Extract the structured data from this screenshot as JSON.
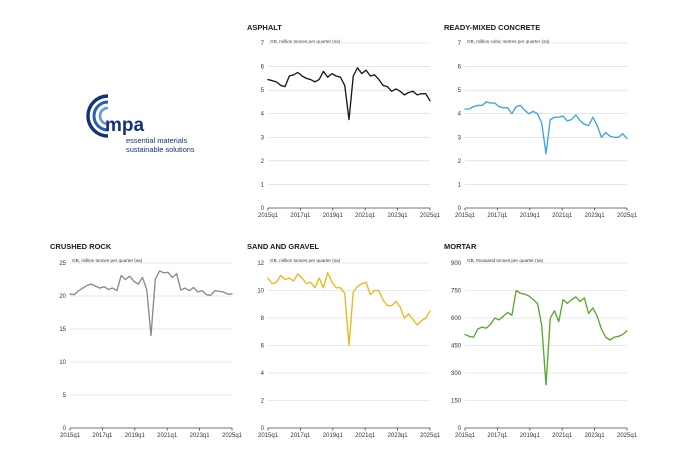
{
  "logo": {
    "name": "mpa",
    "tagline_1": "essential materials",
    "tagline_2": "sustainable solutions",
    "color": "#16307a"
  },
  "chart_data": [
    {
      "type": "line",
      "title": "ASPHALT",
      "ylabel": "GB, million tonnes per quarter (sa)",
      "ylim": [
        0,
        7
      ],
      "yticks": [
        0,
        1,
        2,
        3,
        4,
        5,
        6,
        7
      ],
      "color": "#1a1a1a",
      "x_start": "2015q1",
      "xtick_labels": [
        "2015q1",
        "2017q1",
        "2019q1",
        "2021q1",
        "2023q1",
        "2025q1"
      ],
      "values": [
        5.45,
        5.4,
        5.35,
        5.2,
        5.15,
        5.6,
        5.65,
        5.75,
        5.6,
        5.5,
        5.45,
        5.35,
        5.45,
        5.8,
        5.55,
        5.7,
        5.6,
        5.55,
        5.2,
        3.75,
        5.6,
        5.95,
        5.7,
        5.85,
        5.6,
        5.65,
        5.45,
        5.2,
        5.15,
        4.95,
        5.05,
        4.95,
        4.8,
        4.9,
        4.95,
        4.8,
        4.85,
        4.85,
        4.55
      ]
    },
    {
      "type": "line",
      "title": "READY-MIXED CONCRETE",
      "ylabel": "GB, million cubic metres per quarter (sa)",
      "ylim": [
        0,
        7
      ],
      "yticks": [
        0,
        1,
        2,
        3,
        4,
        5,
        6,
        7
      ],
      "color": "#3aa8dd",
      "x_start": "2015q1",
      "xtick_labels": [
        "2015q1",
        "2017q1",
        "2019q1",
        "2021q1",
        "2023q1",
        "2025q1"
      ],
      "values": [
        4.2,
        4.2,
        4.3,
        4.35,
        4.35,
        4.5,
        4.45,
        4.45,
        4.3,
        4.25,
        4.25,
        4.0,
        4.3,
        4.35,
        4.15,
        4.0,
        4.1,
        4.0,
        3.6,
        2.3,
        3.75,
        3.85,
        3.85,
        3.9,
        3.7,
        3.75,
        3.95,
        3.7,
        3.55,
        3.5,
        3.85,
        3.5,
        3.0,
        3.2,
        3.05,
        3.0,
        3.0,
        3.15,
        2.95
      ]
    },
    {
      "type": "line",
      "title": "CRUSHED ROCK",
      "ylabel": "GB, million tonnes per quarter (sa)",
      "ylim": [
        0,
        25
      ],
      "yticks": [
        0,
        5,
        10,
        15,
        20,
        25
      ],
      "color": "#8a8a8a",
      "x_start": "2015q1",
      "xtick_labels": [
        "2015q1",
        "2017q1",
        "2019q1",
        "2021q1",
        "2023q1",
        "2025q1"
      ],
      "values": [
        20.3,
        20.2,
        20.8,
        21.2,
        21.6,
        21.8,
        21.5,
        21.2,
        21.4,
        21.0,
        21.2,
        20.8,
        23.1,
        22.5,
        23.0,
        22.2,
        21.8,
        22.8,
        21.0,
        14.0,
        22.5,
        23.8,
        23.5,
        23.6,
        22.8,
        23.4,
        20.9,
        21.2,
        20.8,
        21.3,
        20.6,
        20.8,
        20.2,
        20.1,
        20.8,
        20.7,
        20.6,
        20.3,
        20.3
      ]
    },
    {
      "type": "line",
      "title": "SAND AND GRAVEL",
      "ylabel": "GB, million tonnes per quarter (sa)",
      "ylim": [
        0,
        12
      ],
      "yticks": [
        0,
        2,
        4,
        6,
        8,
        10,
        12
      ],
      "color": "#e8b81c",
      "x_start": "2015q1",
      "xtick_labels": [
        "2015q1",
        "2017q1",
        "2019q1",
        "2021q1",
        "2023q1",
        "2025q1"
      ],
      "values": [
        10.9,
        10.5,
        10.6,
        11.1,
        10.8,
        10.9,
        10.7,
        11.2,
        10.9,
        10.5,
        10.6,
        10.2,
        10.9,
        10.2,
        11.3,
        10.6,
        10.2,
        10.2,
        9.8,
        6.0,
        9.9,
        10.3,
        10.5,
        10.6,
        9.7,
        10.0,
        10.0,
        9.3,
        8.9,
        8.9,
        9.2,
        8.8,
        8.0,
        8.3,
        7.9,
        7.5,
        7.8,
        8.0,
        8.5
      ]
    },
    {
      "type": "line",
      "title": "MORTAR",
      "ylabel": "GB, thousand tonnes per quarter (sa)",
      "ylim": [
        0,
        900
      ],
      "yticks": [
        0,
        150,
        300,
        450,
        600,
        750,
        900
      ],
      "color": "#5aa832",
      "x_start": "2015q1",
      "xtick_labels": [
        "2015q1",
        "2017q1",
        "2019q1",
        "2021q1",
        "2023q1",
        "2025q1"
      ],
      "values": [
        510,
        500,
        495,
        540,
        550,
        545,
        565,
        600,
        590,
        610,
        630,
        615,
        750,
        735,
        730,
        720,
        700,
        680,
        560,
        235,
        600,
        640,
        580,
        700,
        680,
        700,
        715,
        690,
        710,
        625,
        655,
        610,
        540,
        495,
        480,
        495,
        500,
        510,
        530
      ]
    }
  ]
}
